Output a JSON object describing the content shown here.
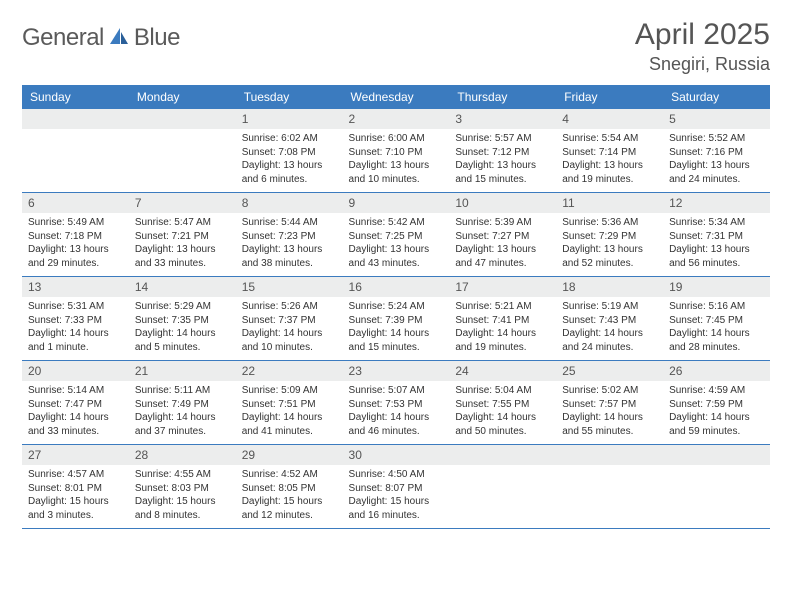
{
  "brand": {
    "name_gray": "General",
    "name_blue": "Blue"
  },
  "title": "April 2025",
  "location": "Snegiri, Russia",
  "colors": {
    "header_bg": "#3b7bbf",
    "header_text": "#ffffff",
    "daynum_bg": "#eceded",
    "text": "#333333",
    "title_text": "#555555",
    "row_border": "#3b7bbf",
    "page_bg": "#ffffff"
  },
  "typography": {
    "title_fontsize": 30,
    "location_fontsize": 18,
    "header_fontsize": 12,
    "daynum_fontsize": 12,
    "body_fontsize": 10
  },
  "day_names": [
    "Sunday",
    "Monday",
    "Tuesday",
    "Wednesday",
    "Thursday",
    "Friday",
    "Saturday"
  ],
  "weeks": [
    [
      null,
      null,
      {
        "n": "1",
        "sr": "6:02 AM",
        "ss": "7:08 PM",
        "dl": "13 hours and 6 minutes."
      },
      {
        "n": "2",
        "sr": "6:00 AM",
        "ss": "7:10 PM",
        "dl": "13 hours and 10 minutes."
      },
      {
        "n": "3",
        "sr": "5:57 AM",
        "ss": "7:12 PM",
        "dl": "13 hours and 15 minutes."
      },
      {
        "n": "4",
        "sr": "5:54 AM",
        "ss": "7:14 PM",
        "dl": "13 hours and 19 minutes."
      },
      {
        "n": "5",
        "sr": "5:52 AM",
        "ss": "7:16 PM",
        "dl": "13 hours and 24 minutes."
      }
    ],
    [
      {
        "n": "6",
        "sr": "5:49 AM",
        "ss": "7:18 PM",
        "dl": "13 hours and 29 minutes."
      },
      {
        "n": "7",
        "sr": "5:47 AM",
        "ss": "7:21 PM",
        "dl": "13 hours and 33 minutes."
      },
      {
        "n": "8",
        "sr": "5:44 AM",
        "ss": "7:23 PM",
        "dl": "13 hours and 38 minutes."
      },
      {
        "n": "9",
        "sr": "5:42 AM",
        "ss": "7:25 PM",
        "dl": "13 hours and 43 minutes."
      },
      {
        "n": "10",
        "sr": "5:39 AM",
        "ss": "7:27 PM",
        "dl": "13 hours and 47 minutes."
      },
      {
        "n": "11",
        "sr": "5:36 AM",
        "ss": "7:29 PM",
        "dl": "13 hours and 52 minutes."
      },
      {
        "n": "12",
        "sr": "5:34 AM",
        "ss": "7:31 PM",
        "dl": "13 hours and 56 minutes."
      }
    ],
    [
      {
        "n": "13",
        "sr": "5:31 AM",
        "ss": "7:33 PM",
        "dl": "14 hours and 1 minute."
      },
      {
        "n": "14",
        "sr": "5:29 AM",
        "ss": "7:35 PM",
        "dl": "14 hours and 5 minutes."
      },
      {
        "n": "15",
        "sr": "5:26 AM",
        "ss": "7:37 PM",
        "dl": "14 hours and 10 minutes."
      },
      {
        "n": "16",
        "sr": "5:24 AM",
        "ss": "7:39 PM",
        "dl": "14 hours and 15 minutes."
      },
      {
        "n": "17",
        "sr": "5:21 AM",
        "ss": "7:41 PM",
        "dl": "14 hours and 19 minutes."
      },
      {
        "n": "18",
        "sr": "5:19 AM",
        "ss": "7:43 PM",
        "dl": "14 hours and 24 minutes."
      },
      {
        "n": "19",
        "sr": "5:16 AM",
        "ss": "7:45 PM",
        "dl": "14 hours and 28 minutes."
      }
    ],
    [
      {
        "n": "20",
        "sr": "5:14 AM",
        "ss": "7:47 PM",
        "dl": "14 hours and 33 minutes."
      },
      {
        "n": "21",
        "sr": "5:11 AM",
        "ss": "7:49 PM",
        "dl": "14 hours and 37 minutes."
      },
      {
        "n": "22",
        "sr": "5:09 AM",
        "ss": "7:51 PM",
        "dl": "14 hours and 41 minutes."
      },
      {
        "n": "23",
        "sr": "5:07 AM",
        "ss": "7:53 PM",
        "dl": "14 hours and 46 minutes."
      },
      {
        "n": "24",
        "sr": "5:04 AM",
        "ss": "7:55 PM",
        "dl": "14 hours and 50 minutes."
      },
      {
        "n": "25",
        "sr": "5:02 AM",
        "ss": "7:57 PM",
        "dl": "14 hours and 55 minutes."
      },
      {
        "n": "26",
        "sr": "4:59 AM",
        "ss": "7:59 PM",
        "dl": "14 hours and 59 minutes."
      }
    ],
    [
      {
        "n": "27",
        "sr": "4:57 AM",
        "ss": "8:01 PM",
        "dl": "15 hours and 3 minutes."
      },
      {
        "n": "28",
        "sr": "4:55 AM",
        "ss": "8:03 PM",
        "dl": "15 hours and 8 minutes."
      },
      {
        "n": "29",
        "sr": "4:52 AM",
        "ss": "8:05 PM",
        "dl": "15 hours and 12 minutes."
      },
      {
        "n": "30",
        "sr": "4:50 AM",
        "ss": "8:07 PM",
        "dl": "15 hours and 16 minutes."
      },
      null,
      null,
      null
    ]
  ],
  "labels": {
    "sunrise": "Sunrise: ",
    "sunset": "Sunset: ",
    "daylight": "Daylight: "
  }
}
